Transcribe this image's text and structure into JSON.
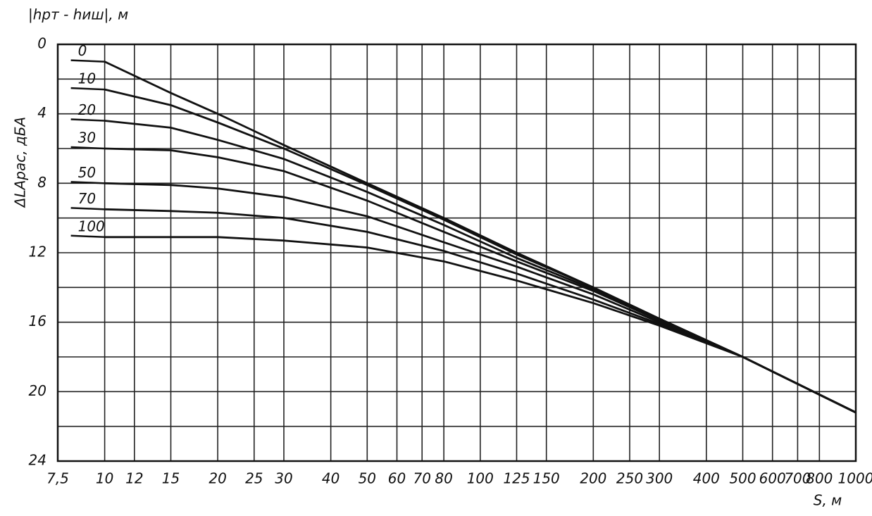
{
  "chart_data": {
    "type": "line",
    "legend_title": "|hрт - hиш|, м",
    "ylabel": "ΔLАрас, дБА",
    "xlabel": "S, м",
    "x": [
      10,
      15,
      20,
      30,
      50,
      80,
      125,
      200,
      300,
      500,
      1000
    ],
    "series": [
      {
        "name": "0",
        "color": "#111111",
        "values": [
          1.0,
          2.8,
          4.0,
          5.8,
          8.0,
          10.0,
          12.0,
          14.0,
          15.8,
          18.0,
          21.2
        ]
      },
      {
        "name": "10",
        "color": "#111111",
        "values": [
          2.6,
          3.5,
          4.5,
          6.0,
          8.1,
          10.1,
          12.1,
          14.0,
          15.8,
          18.0,
          21.2
        ]
      },
      {
        "name": "20",
        "color": "#111111",
        "values": [
          4.4,
          4.8,
          5.5,
          6.6,
          8.5,
          10.4,
          12.3,
          14.1,
          15.8,
          18.0,
          21.2
        ]
      },
      {
        "name": "30",
        "color": "#111111",
        "values": [
          6.0,
          6.1,
          6.5,
          7.3,
          9.0,
          10.8,
          12.5,
          14.2,
          15.9,
          18.0,
          21.2
        ]
      },
      {
        "name": "50",
        "color": "#111111",
        "values": [
          8.0,
          8.1,
          8.3,
          8.8,
          9.9,
          11.4,
          12.8,
          14.4,
          16.0,
          18.0,
          21.2
        ]
      },
      {
        "name": "70",
        "color": "#111111",
        "values": [
          9.5,
          9.6,
          9.7,
          10.0,
          10.8,
          11.9,
          13.2,
          14.7,
          16.1,
          18.0,
          21.2
        ]
      },
      {
        "name": "100",
        "color": "#111111",
        "values": [
          11.1,
          11.1,
          11.1,
          11.3,
          11.7,
          12.5,
          13.6,
          14.9,
          16.2,
          18.0,
          21.2
        ]
      }
    ],
    "xlog": true,
    "xlim": [
      7.5,
      1000
    ],
    "xticks": [
      {
        "value": 7.5,
        "label": "7,5"
      },
      10,
      12,
      15,
      20,
      25,
      30,
      40,
      50,
      60,
      70,
      80,
      100,
      125,
      150,
      200,
      250,
      300,
      400,
      500,
      600,
      700,
      800,
      1000
    ],
    "ylim": [
      0,
      24
    ],
    "yinverted": true,
    "yticks": [
      0,
      4,
      8,
      12,
      16,
      20,
      24
    ],
    "y_grid_lines": [
      0,
      2,
      4,
      6,
      8,
      10,
      12,
      14,
      16,
      18,
      20,
      22,
      24
    ],
    "grid": true
  }
}
